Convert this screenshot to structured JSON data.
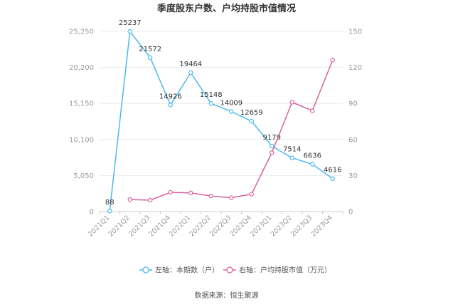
{
  "chart_data": {
    "type": "line",
    "title": "季度股东户数、户均持股市值情况",
    "categories": [
      "2021Q1",
      "2021Q2",
      "2021Q3",
      "2021Q4",
      "2022Q1",
      "2022Q2",
      "2022Q3",
      "2022Q4",
      "2023Q1",
      "2023Q2",
      "2023Q3",
      "2023Q4"
    ],
    "left_axis": {
      "ticks": [
        "0",
        "5,050",
        "10,100",
        "15,150",
        "20,200",
        "25,250"
      ],
      "ylim": [
        0,
        25250
      ]
    },
    "right_axis": {
      "ticks": [
        "0",
        "30",
        "60",
        "90",
        "120",
        "150"
      ],
      "ylim": [
        0,
        150
      ]
    },
    "series": [
      {
        "name": "左轴：本期数（户）",
        "axis": "left",
        "color": "#4db8ee",
        "values": [
          88,
          25237,
          21572,
          14926,
          19464,
          15148,
          14009,
          12659,
          9179,
          7514,
          6636,
          4616
        ],
        "labels": [
          "88",
          "25237",
          "21572",
          "14926",
          "19464",
          "15148",
          "14009",
          "12659",
          "9179",
          "7514",
          "6636",
          "4616"
        ]
      },
      {
        "name": "右轴：户均持股市值（万元）",
        "axis": "right",
        "color": "#d9629e",
        "values": [
          null,
          10,
          9.5,
          16,
          15.5,
          13,
          11.5,
          14.5,
          49,
          91,
          84,
          126
        ]
      }
    ],
    "grid": true,
    "legend": "bottom-center"
  },
  "source": "数据来源：恒生聚源"
}
